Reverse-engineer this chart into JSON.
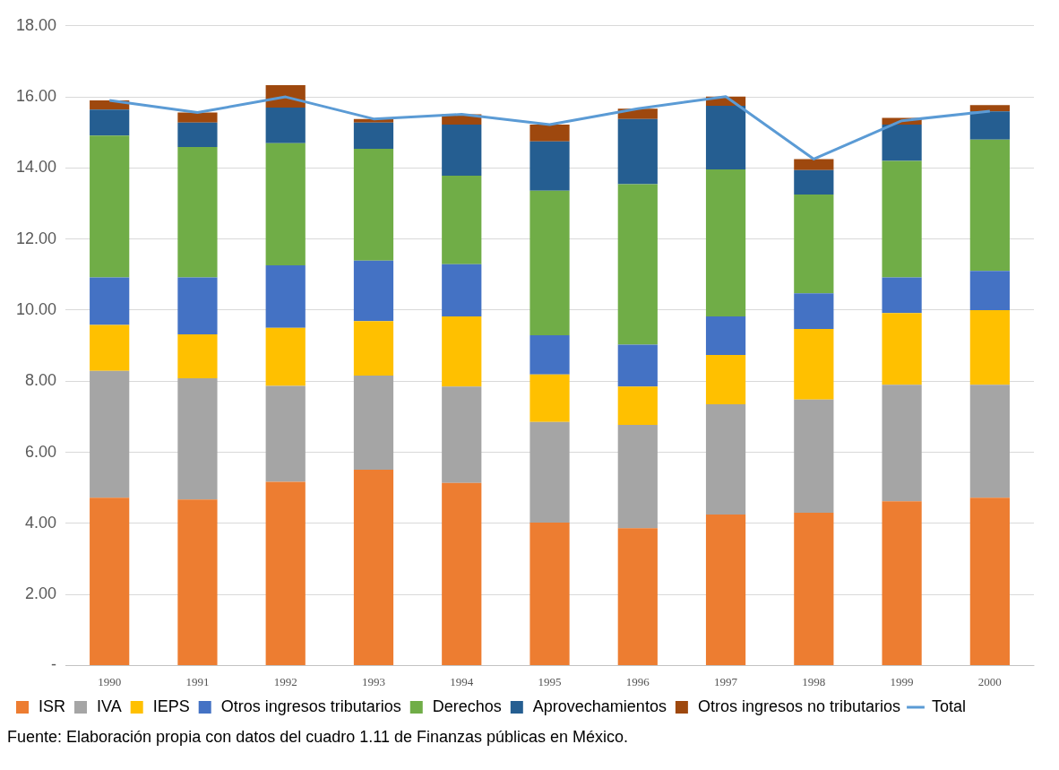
{
  "chart_data": {
    "type": "bar",
    "stacked": true,
    "categories": [
      "1990",
      "1991",
      "1992",
      "1993",
      "1994",
      "1995",
      "1996",
      "1997",
      "1998",
      "1999",
      "2000"
    ],
    "series": [
      {
        "name": "ISR",
        "color": "#ed7d31",
        "values": [
          4.72,
          4.67,
          5.17,
          5.51,
          5.14,
          4.02,
          3.86,
          4.25,
          4.3,
          4.62,
          4.72
        ]
      },
      {
        "name": "IVA",
        "color": "#a5a5a5",
        "values": [
          3.57,
          3.41,
          2.7,
          2.65,
          2.71,
          2.83,
          2.91,
          3.1,
          3.18,
          3.28,
          3.18
        ]
      },
      {
        "name": "IEPS",
        "color": "#ffc000",
        "values": [
          1.29,
          1.24,
          1.63,
          1.53,
          1.97,
          1.34,
          1.08,
          1.39,
          1.99,
          2.02,
          2.1
        ]
      },
      {
        "name": "Otros ingresos tributarios",
        "color": "#4472c4",
        "values": [
          1.34,
          1.6,
          1.76,
          1.7,
          1.47,
          1.1,
          1.18,
          1.08,
          1.0,
          1.0,
          1.1
        ]
      },
      {
        "name": "Derechos",
        "color": "#70ad47",
        "values": [
          3.99,
          3.67,
          3.44,
          3.15,
          2.49,
          4.07,
          4.51,
          4.14,
          2.78,
          3.28,
          3.7
        ]
      },
      {
        "name": "Aprovechamientos",
        "color": "#255e91",
        "values": [
          0.73,
          0.69,
          1.0,
          0.74,
          1.44,
          1.39,
          1.84,
          1.79,
          0.69,
          1.02,
          0.79
        ]
      },
      {
        "name": "Otros ingresos no tributarios",
        "color": "#9e480e",
        "values": [
          0.26,
          0.28,
          0.63,
          0.1,
          0.29,
          0.47,
          0.29,
          0.26,
          0.31,
          0.19,
          0.18
        ]
      },
      {
        "name": "Total",
        "type": "line",
        "color": "#5b9bd5",
        "values": [
          15.9,
          15.56,
          16.0,
          15.38,
          15.51,
          15.22,
          15.67,
          16.01,
          14.25,
          15.33,
          15.6
        ]
      }
    ],
    "ylim": [
      0,
      18
    ],
    "yticks": [
      {
        "value": 0,
        "label": "-"
      },
      {
        "value": 2,
        "label": "2.00"
      },
      {
        "value": 4,
        "label": "4.00"
      },
      {
        "value": 6,
        "label": "6.00"
      },
      {
        "value": 8,
        "label": "8.00"
      },
      {
        "value": 10,
        "label": "10.00"
      },
      {
        "value": 12,
        "label": "12.00"
      },
      {
        "value": 14,
        "label": "14.00"
      },
      {
        "value": 16,
        "label": "16.00"
      },
      {
        "value": 18,
        "label": "18.00"
      }
    ],
    "grid": "y",
    "legend": "bottom",
    "marker": "none",
    "annotations": [
      "Fuente: Elaboración propia con datos del cuadro 1.11 de Finanzas públicas en México."
    ]
  }
}
